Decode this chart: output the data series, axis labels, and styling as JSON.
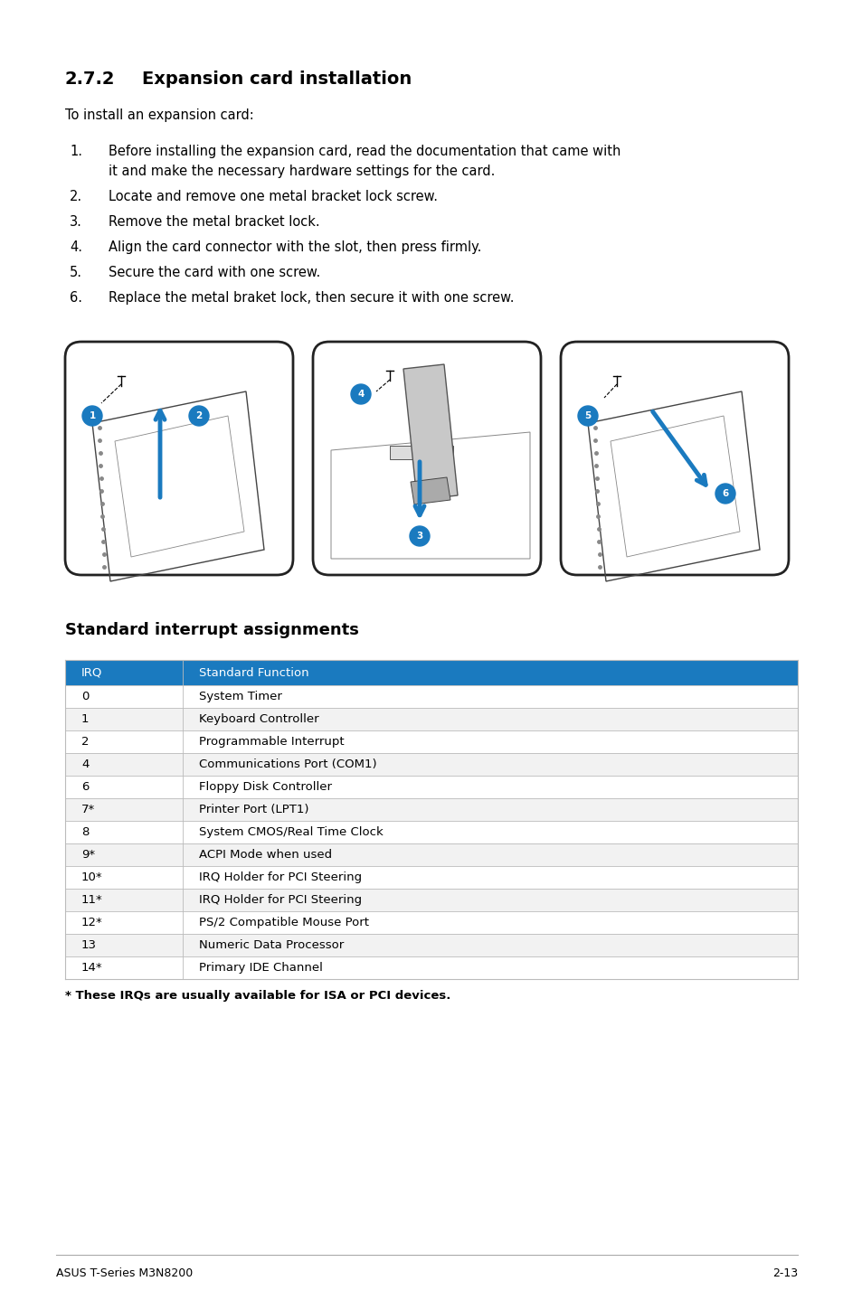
{
  "page_bg": "#ffffff",
  "section_title_num": "2.7.2",
  "section_title_text": "Expansion card installation",
  "intro_text": "To install an expansion card:",
  "steps": [
    [
      "Before installing the expansion card, read the documentation that came with",
      "it and make the necessary hardware settings for the card."
    ],
    [
      "Locate and remove one metal bracket lock screw."
    ],
    [
      "Remove the metal bracket lock."
    ],
    [
      "Align the card connector with the slot, then press firmly."
    ],
    [
      "Secure the card with one screw."
    ],
    [
      "Replace the metal braket lock, then secure it with one screw."
    ]
  ],
  "table_title": "Standard interrupt assignments",
  "table_header": [
    "IRQ",
    "Standard Function"
  ],
  "table_header_bg": "#1a7abf",
  "table_header_color": "#ffffff",
  "table_rows": [
    [
      "0",
      "System Timer"
    ],
    [
      "1",
      "Keyboard Controller"
    ],
    [
      "2",
      "Programmable Interrupt"
    ],
    [
      "4",
      "Communications Port (COM1)"
    ],
    [
      "6",
      "Floppy Disk Controller"
    ],
    [
      "7*",
      "Printer Port (LPT1)"
    ],
    [
      "8",
      "System CMOS/Real Time Clock"
    ],
    [
      "9*",
      "ACPI Mode when used"
    ],
    [
      "10*",
      "IRQ Holder for PCI Steering"
    ],
    [
      "11*",
      "IRQ Holder for PCI Steering"
    ],
    [
      "12*",
      "PS/2 Compatible Mouse Port"
    ],
    [
      "13",
      "Numeric Data Processor"
    ],
    [
      "14*",
      "Primary IDE Channel"
    ]
  ],
  "table_border_color": "#bbbbbb",
  "footnote": "* These IRQs are usually available for ISA or PCI devices.",
  "footer_left": "ASUS T-Series M3N8200",
  "footer_right": "2-13",
  "footer_line_color": "#aaaaaa",
  "text_color": "#000000",
  "blue": "#1a7abf"
}
